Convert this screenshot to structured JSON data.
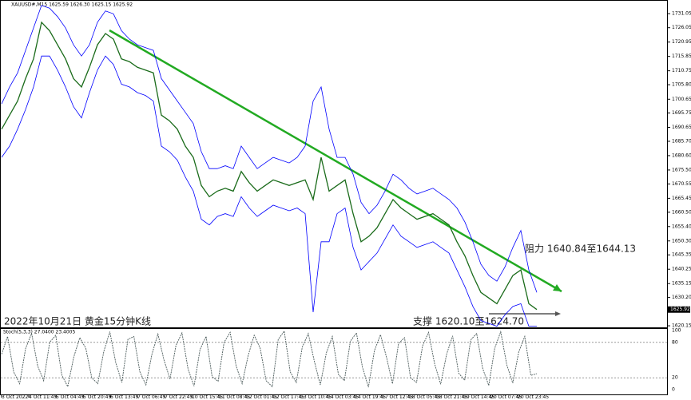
{
  "chart_data": {
    "type": "line",
    "title": "XAUUSD#,M15 1625.59 1626.30 1625.15 1625.92",
    "annotations": [
      "阻力 1640.84至1644.13",
      "支撑 1620.10至1624.70",
      "2022年10月21日 黄金15分钟K线"
    ],
    "x_labels": [
      "3 Oct 2022",
      "4 Oct 11:45",
      "5 Oct 04:45",
      "5 Oct 20:45",
      "6 Oct 13:45",
      "7 Oct 06:45",
      "7 Oct 22:45",
      "10 Oct 15:45",
      "11 Oct 08:45",
      "12 Oct 01:45",
      "12 Oct 17:45",
      "13 Oct 10:45",
      "14 Oct 03:45",
      "14 Oct 19:45",
      "17 Oct 12:45",
      "18 Oct 05:45",
      "18 Oct 21:45",
      "19 Oct 14:45",
      "20 Oct 07:45",
      "20 Oct 23:45"
    ],
    "values": [
      1690,
      1695,
      1700,
      1708,
      1715,
      1728,
      1725,
      1720,
      1715,
      1708,
      1705,
      1712,
      1720,
      1724,
      1722,
      1715,
      1714,
      1712,
      1711,
      1710,
      1695,
      1693,
      1690,
      1684,
      1680,
      1670,
      1666,
      1668,
      1669,
      1668,
      1675,
      1671,
      1668,
      1670,
      1672,
      1671,
      1670,
      1671,
      1672,
      1665,
      1680,
      1668,
      1670,
      1672,
      1660,
      1650,
      1652,
      1655,
      1660,
      1665,
      1662,
      1660,
      1658,
      1659,
      1660,
      1658,
      1656,
      1650,
      1645,
      1638,
      1632,
      1630,
      1628,
      1633,
      1638,
      1640,
      1628,
      1625.92
    ],
    "upper": [
      1699,
      1705,
      1710,
      1718,
      1726,
      1734,
      1733,
      1730,
      1726,
      1720,
      1716,
      1720,
      1728,
      1732,
      1731,
      1725,
      1722,
      1720,
      1719,
      1718,
      1708,
      1704,
      1700,
      1696,
      1692,
      1682,
      1676,
      1676,
      1677,
      1676,
      1684,
      1680,
      1676,
      1678,
      1680,
      1679,
      1678,
      1680,
      1684,
      1700,
      1705,
      1690,
      1680,
      1680,
      1674,
      1664,
      1660,
      1663,
      1668,
      1674,
      1672,
      1669,
      1667,
      1668,
      1669,
      1667,
      1665,
      1662,
      1657,
      1650,
      1642,
      1638,
      1636,
      1641,
      1648,
      1654,
      1640,
      1632
    ],
    "lower": [
      1680,
      1684,
      1690,
      1697,
      1705,
      1716,
      1716,
      1711,
      1705,
      1698,
      1694,
      1703,
      1711,
      1716,
      1713,
      1706,
      1705,
      1703,
      1702,
      1700,
      1684,
      1682,
      1679,
      1673,
      1668,
      1658,
      1656,
      1659,
      1660,
      1659,
      1666,
      1662,
      1659,
      1661,
      1663,
      1662,
      1661,
      1662,
      1660,
      1625,
      1650,
      1650,
      1660,
      1662,
      1648,
      1640,
      1643,
      1646,
      1651,
      1656,
      1652,
      1650,
      1648,
      1649,
      1650,
      1648,
      1646,
      1640,
      1634,
      1627,
      1622,
      1621,
      1620,
      1624,
      1627,
      1628,
      1620,
      1620
    ],
    "ylim": [
      1619.6,
      1735.9
    ],
    "yticks": [
      1731.05,
      1726.05,
      1720.95,
      1715.85,
      1710.75,
      {
        "value": 1705.8,
        "label": "1705.80"
      },
      1700.65,
      1695.75,
      1690.65,
      {
        "value": 1685.7,
        "label": "1685.70"
      },
      {
        "value": 1680.6,
        "label": "1680.60"
      },
      {
        "value": 1675.5,
        "label": "1675.50"
      },
      1670.55,
      1665.45,
      {
        "value": 1660.5,
        "label": "1660.50"
      },
      {
        "value": 1655.4,
        "label": "1655.40"
      },
      {
        "value": 1650.3,
        "label": "1650.30"
      },
      1645.35,
      1640.25,
      1635.15,
      {
        "value": 1630.2,
        "label": "1630.20"
      },
      1620.15
    ],
    "colors": {
      "price": "#1a6b1a",
      "bands": "#0000ff",
      "trend": "#22aa22",
      "stoch": "#4a5a5a"
    },
    "stoch": {
      "title": "Stoch(5,3,3) 27.0400 23.4005",
      "ylim": [
        0,
        100
      ],
      "yticks": [
        100,
        80,
        20,
        0
      ],
      "values": [
        60,
        90,
        30,
        10,
        70,
        95,
        40,
        15,
        80,
        92,
        25,
        5,
        55,
        88,
        70,
        20,
        10,
        65,
        98,
        45,
        12,
        85,
        90,
        30,
        8,
        60,
        94,
        50,
        18,
        75,
        96,
        35,
        6,
        68,
        90,
        22,
        14,
        80,
        97,
        40,
        10,
        58,
        92,
        70,
        15,
        5,
        85,
        99,
        30,
        12,
        72,
        95,
        48,
        8,
        62,
        90,
        26,
        15,
        82,
        96,
        38,
        4,
        66,
        93,
        55,
        10,
        78,
        88,
        20,
        12,
        74,
        97,
        44,
        9,
        60,
        91,
        28,
        16,
        84,
        95,
        36,
        7,
        70,
        98,
        42,
        11,
        64,
        90,
        24,
        27
      ]
    }
  }
}
